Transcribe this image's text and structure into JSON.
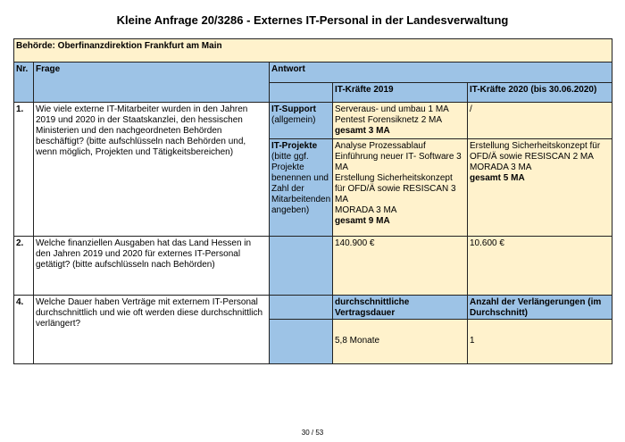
{
  "title": "Kleine Anfrage 20/3286 - Externes IT-Personal in der Landesverwaltung",
  "authority": "Behörde: Oberfinanzdirektion Frankfurt am Main",
  "headers": {
    "nr": "Nr.",
    "frage": "Frage",
    "antwort": "Antwort",
    "col2019": "IT-Kräfte 2019",
    "col2020": "IT-Kräfte 2020 (bis 30.06.2020)"
  },
  "rows": [
    {
      "nr": "1.",
      "frage": "Wie viele externe IT-Mitarbeiter wurden in den Jahren 2019 und 2020 in der Staatskanzlei, den hessischen Ministerien und den nachgeordneten Behörden beschäftigt? (bitte aufschlüsseln nach Behörden und, wenn möglich, Projekten und Tätigkeitsbereichen)",
      "support": {
        "label": "IT-Support",
        "sub": "(allgemein)",
        "y2019": [
          "Serveraus- und umbau 1 MA",
          "Pentest Forensiknetz 2 MA"
        ],
        "y2019_total": "gesamt 3 MA",
        "y2020": "/"
      },
      "projekte": {
        "label": "IT-Projekte",
        "sub": "(bitte ggf. Projekte benennen und Zahl der Mitarbeitenden angeben)",
        "y2019": [
          "Analyse Prozessablauf",
          "Einführung neuer IT- Software 3 MA",
          "Erstellung Sicherheitskonzept für OFD/Ä sowie RESISCAN 3 MA",
          "MORADA 3 MA"
        ],
        "y2019_total": "gesamt 9 MA",
        "y2020": [
          "Erstellung Sicherheitskonzept für OFD/Ä sowie RESISCAN 2 MA",
          "MORADA 3 MA"
        ],
        "y2020_total": "gesamt 5 MA"
      }
    },
    {
      "nr": "2.",
      "frage": "Welche finanziellen Ausgaben hat das Land Hessen in den Jahren 2019 und 2020 für externes IT-Personal getätigt? (bitte aufschlüsseln nach Behörden)",
      "y2019": "140.900 €",
      "y2020": "10.600 €"
    },
    {
      "nr": "4.",
      "frage": "Welche Dauer haben Verträge mit externem IT-Personal durchschnittlich und wie oft werden diese durchschnittlich verlängert?",
      "h2019": "durchschnittliche Vertragsdauer",
      "h2020": "Anzahl der Verlängerungen (im Durchschnitt)",
      "y2019": "5,8 Monate",
      "y2020": "1"
    }
  ],
  "footer": "30 / 53",
  "colors": {
    "blue": "#9dc3e6",
    "yellow": "#fff2cc"
  }
}
